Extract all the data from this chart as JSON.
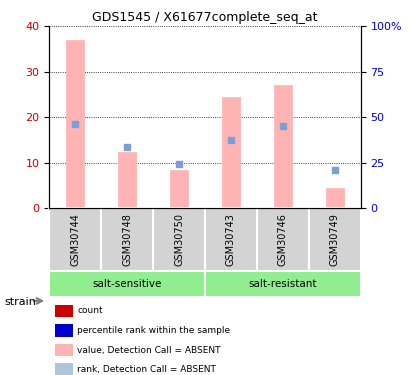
{
  "title": "GDS1545 / X61677complete_seq_at",
  "samples": [
    "GSM30744",
    "GSM30748",
    "GSM30750",
    "GSM30743",
    "GSM30746",
    "GSM30749"
  ],
  "groups": [
    "salt-sensitive",
    "salt-sensitive",
    "salt-sensitive",
    "salt-resistant",
    "salt-resistant",
    "salt-resistant"
  ],
  "group_labels": [
    "salt-sensitive",
    "salt-resistant"
  ],
  "group_colors": [
    "#90ee90",
    "#90ee90"
  ],
  "bar_values_pink": [
    37,
    12.5,
    8.5,
    24.5,
    27,
    4.5
  ],
  "dot_values_blue": [
    18.5,
    13.5,
    9.8,
    15.0,
    18.0,
    8.5
  ],
  "bar_color_pink": "#ffb3b3",
  "dot_color_blue": "#7b9fd4",
  "left_ylim": [
    0,
    40
  ],
  "right_ylim": [
    0,
    100
  ],
  "left_yticks": [
    0,
    10,
    20,
    30,
    40
  ],
  "right_yticks": [
    0,
    25,
    50,
    75,
    100
  ],
  "right_yticklabels": [
    "0",
    "25",
    "50",
    "75",
    "100%"
  ],
  "left_ylabel_color": "#cc0000",
  "right_ylabel_color": "#0000cc",
  "grid_color": "#000000",
  "sample_box_color": "#d3d3d3",
  "legend_items": [
    {
      "label": "count",
      "color": "#cc0000",
      "marker": "s"
    },
    {
      "label": "percentile rank within the sample",
      "color": "#0000cc",
      "marker": "s"
    },
    {
      "label": "value, Detection Call = ABSENT",
      "color": "#ffb3b3",
      "marker": "s"
    },
    {
      "label": "rank, Detection Call = ABSENT",
      "color": "#b0c4de",
      "marker": "s"
    }
  ],
  "strain_label": "strain"
}
